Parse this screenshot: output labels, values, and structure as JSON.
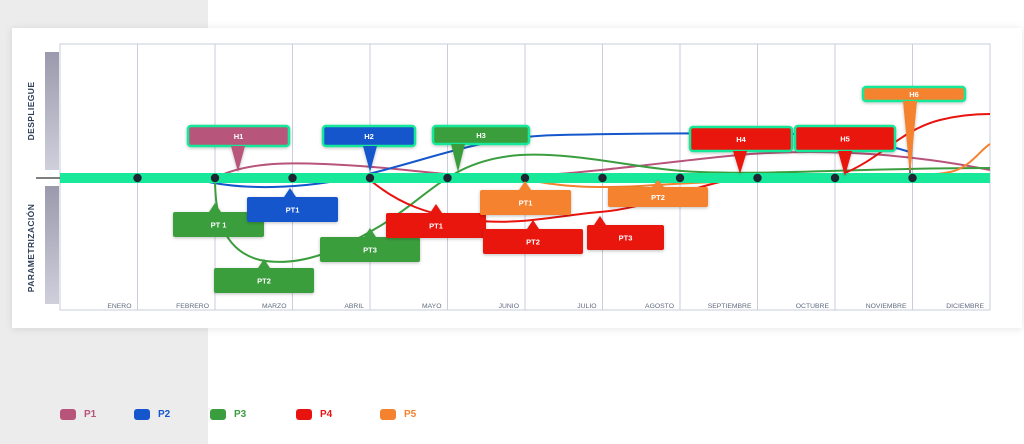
{
  "axis": {
    "top_label": "DESPLIEGUE",
    "bottom_label": "PARAMETRIZACIÓN"
  },
  "months": [
    "ENERO",
    "FEBRERO",
    "MARZO",
    "ABRIL",
    "MAYO",
    "JUNIO",
    "JULIO",
    "AGOSTO",
    "SEPTIEMBRE",
    "OCTUBRE",
    "NOVIEMBRE",
    "DICIEMBRE"
  ],
  "colors": {
    "timeline": "#18e89a",
    "P1": "#b8547a",
    "P2": "#1457cc",
    "P3": "#3b9e3e",
    "P4": "#e8130f",
    "P5": "#f5822f"
  },
  "deploy_flags": [
    {
      "label": "H1",
      "project": "P1"
    },
    {
      "label": "H2",
      "project": "P2"
    },
    {
      "label": "H3",
      "project": "P3"
    },
    {
      "label": "H4",
      "project": "P4"
    },
    {
      "label": "H5",
      "project": "P4"
    },
    {
      "label": "H6",
      "project": "P5"
    }
  ],
  "param_flags": [
    {
      "label": "PT 1",
      "project": "P3"
    },
    {
      "label": "PT1",
      "project": "P2"
    },
    {
      "label": "PT2",
      "project": "P3"
    },
    {
      "label": "PT3",
      "project": "P3"
    },
    {
      "label": "PT1",
      "project": "P4"
    },
    {
      "label": "PT1",
      "project": "P5"
    },
    {
      "label": "PT2",
      "project": "P4"
    },
    {
      "label": "PT3",
      "project": "P4"
    },
    {
      "label": "PT2",
      "project": "P5"
    }
  ],
  "legend": [
    {
      "label": "P1",
      "color": "#b8547a"
    },
    {
      "label": "P2",
      "color": "#1457cc"
    },
    {
      "label": "P3",
      "color": "#3b9e3e"
    },
    {
      "label": "P4",
      "color": "#e8130f"
    },
    {
      "label": "P5",
      "color": "#f5822f"
    }
  ]
}
